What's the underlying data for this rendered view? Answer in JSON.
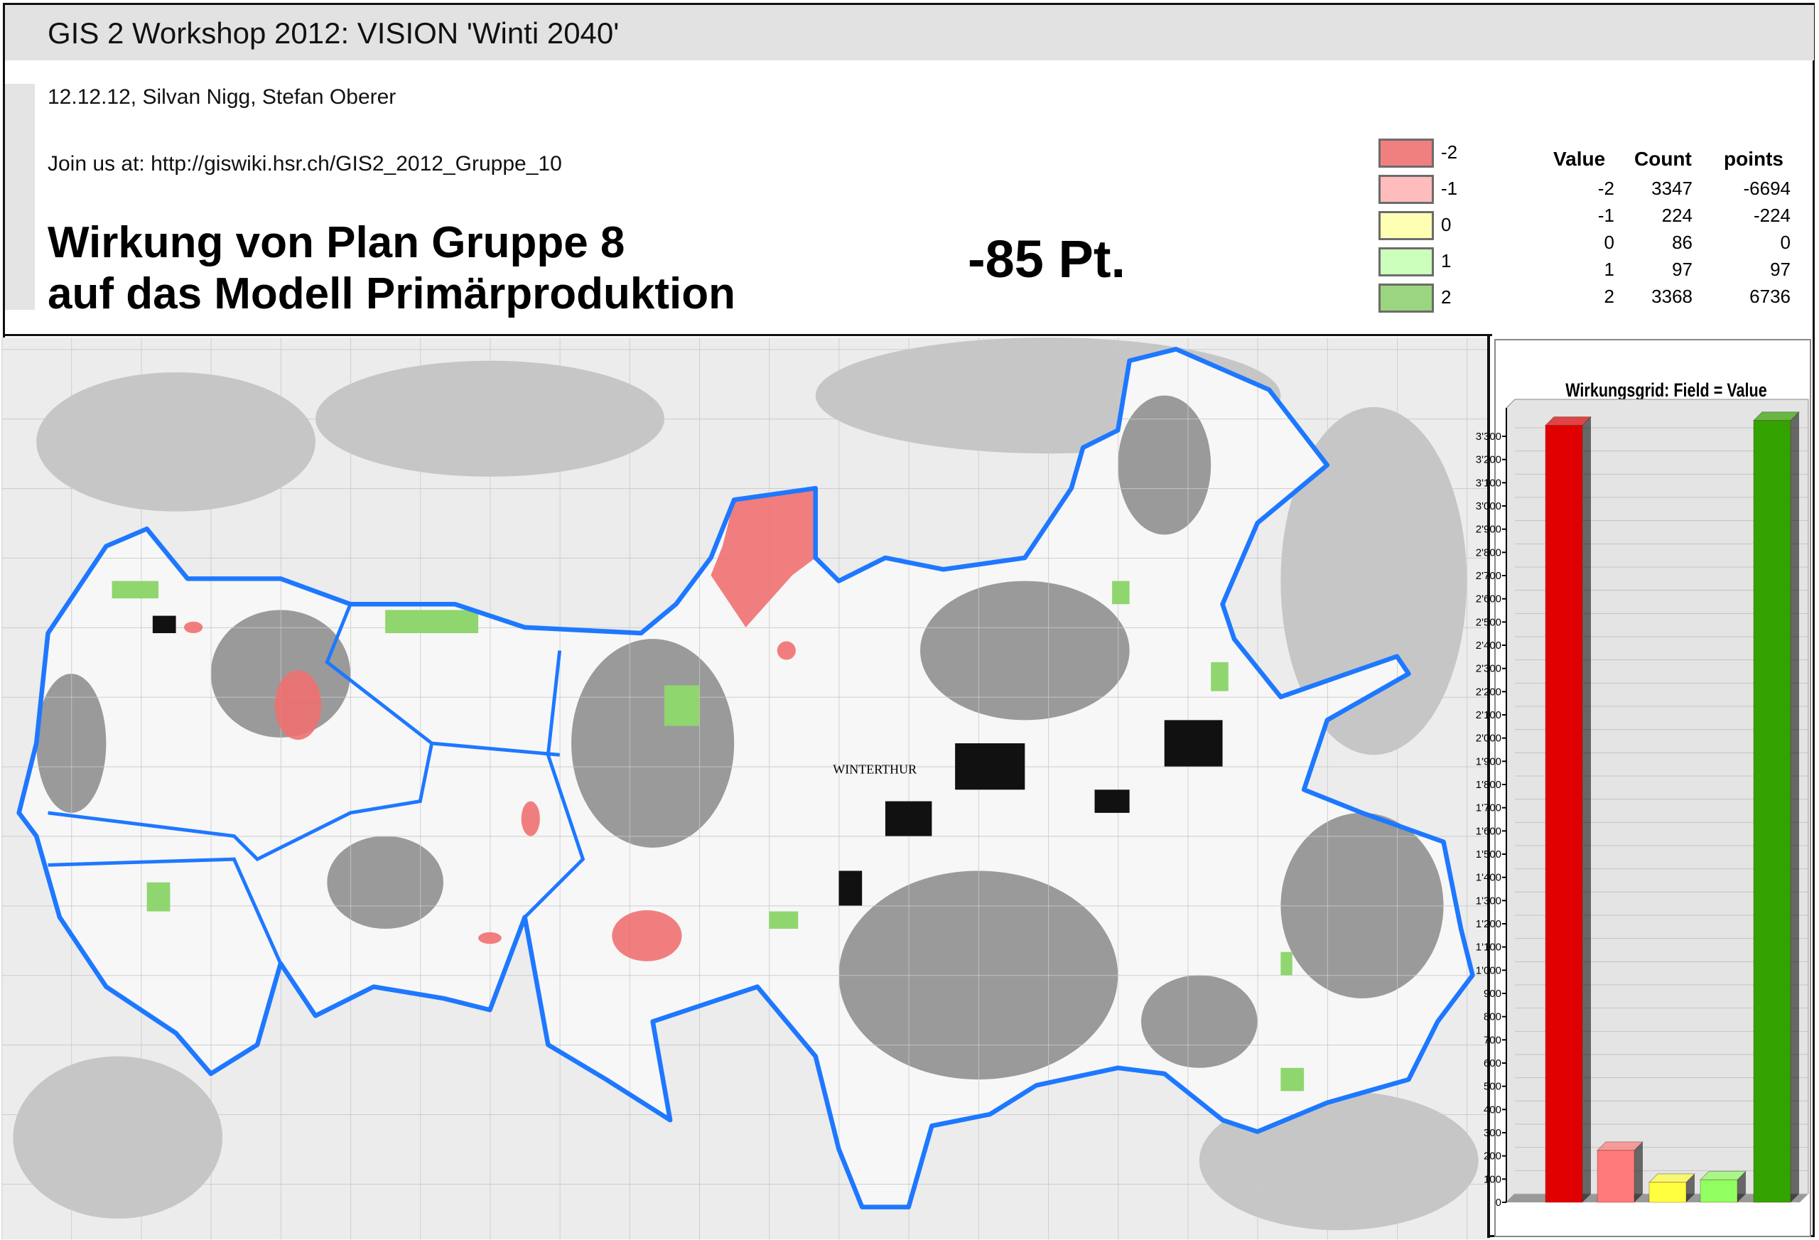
{
  "header": {
    "title": "GIS 2 Workshop 2012: VISION 'Winti 2040'"
  },
  "meta": {
    "authors": "12.12.12, Silvan Nigg, Stefan Oberer",
    "link": "Join us at: http://giswiki.hsr.ch/GIS2_2012_Gruppe_10"
  },
  "headline": {
    "line1": "Wirkung von Plan Gruppe 8",
    "line2": "auf das Modell Primärproduktion",
    "score": "-85 Pt."
  },
  "legend": [
    {
      "label": "-2",
      "color": "#f08080"
    },
    {
      "label": "-1",
      "color": "#ffbcbc"
    },
    {
      "label": "0",
      "color": "#ffffb4"
    },
    {
      "label": "1",
      "color": "#ccffbb"
    },
    {
      "label": "2",
      "color": "#9bd57f"
    }
  ],
  "table": {
    "headers": [
      "Value",
      "Count",
      "points"
    ],
    "rows": [
      [
        "-2",
        "3347",
        "-6694"
      ],
      [
        "-1",
        "224",
        "-224"
      ],
      [
        "0",
        "86",
        "0"
      ],
      [
        "1",
        "97",
        "97"
      ],
      [
        "2",
        "3368",
        "6736"
      ]
    ]
  },
  "map": {
    "labels": [
      "WINTERTHUR"
    ],
    "boundary_color": "#1e78ff"
  },
  "chart_data": {
    "type": "bar",
    "title": "Wirkungsgrid: Field = Value",
    "categories": [
      "-2",
      "-1",
      "0",
      "1",
      "2"
    ],
    "values": [
      3347,
      224,
      86,
      97,
      3368
    ],
    "colors": [
      "#e00000",
      "#ff7a7a",
      "#ffff40",
      "#90ff60",
      "#33a300"
    ],
    "ylim": [
      0,
      3300
    ],
    "yticks": [
      "0",
      "100",
      "200",
      "300",
      "400",
      "500",
      "600",
      "700",
      "800",
      "900",
      "1'000",
      "1'100",
      "1'200",
      "1'300",
      "1'400",
      "1'500",
      "1'600",
      "1'700",
      "1'800",
      "1'900",
      "2'000",
      "2'100",
      "2'200",
      "2'300",
      "2'400",
      "2'500",
      "2'600",
      "2'700",
      "2'800",
      "2'900",
      "3'000",
      "3'100",
      "3'200",
      "3'300"
    ],
    "grid": true
  }
}
